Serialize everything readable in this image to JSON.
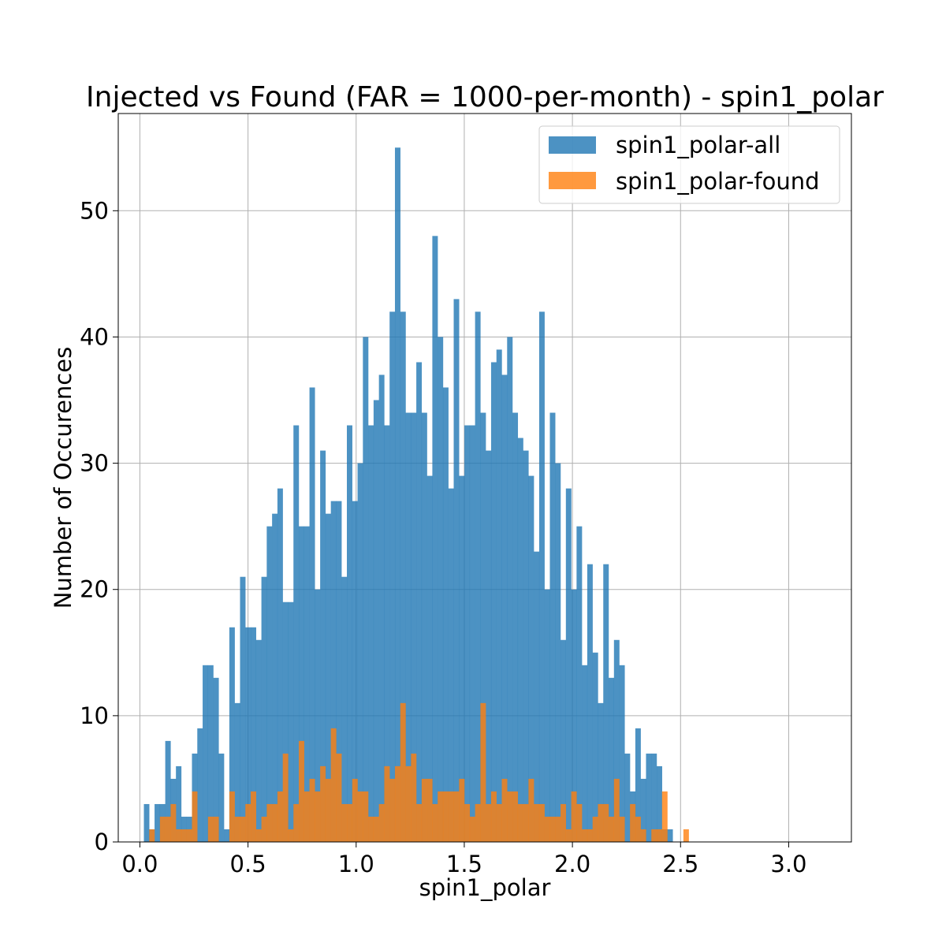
{
  "chart_data": {
    "type": "histogram",
    "title": "Injected vs Found (FAR = 1000-per-month) - spin1_polar",
    "xlabel": "spin1_polar",
    "ylabel": "Number of Occurences",
    "xlim": [
      -0.1,
      3.29
    ],
    "ylim": [
      0,
      57.7
    ],
    "xticks": [
      0.0,
      0.5,
      1.0,
      1.5,
      2.0,
      2.5,
      3.0
    ],
    "xtick_labels": [
      "0.0",
      "0.5",
      "1.0",
      "1.5",
      "2.0",
      "2.5",
      "3.0"
    ],
    "yticks": [
      0,
      10,
      20,
      30,
      40,
      50
    ],
    "ytick_labels": [
      "0",
      "10",
      "20",
      "30",
      "40",
      "50"
    ],
    "grid": true,
    "legend_position": "top-right",
    "series": [
      {
        "name": "spin1_polar-all",
        "color": "#1f77b4",
        "opacity": 0.8,
        "bin_start": 0.0185,
        "bin_width": 0.0247,
        "values": [
          3,
          1,
          3,
          3,
          8,
          5,
          6,
          2,
          2,
          7,
          9,
          14,
          14,
          13,
          7,
          1,
          17,
          11,
          21,
          17,
          17,
          16,
          21,
          25,
          26,
          28,
          19,
          19,
          33,
          25,
          25,
          36,
          20,
          31,
          26,
          27,
          27,
          21,
          33,
          27,
          30,
          40,
          33,
          35,
          37,
          33,
          42,
          55,
          42,
          34,
          34,
          38,
          34,
          29,
          48,
          40,
          36,
          28,
          43,
          29,
          33,
          33,
          42,
          34,
          31,
          38,
          39,
          37,
          40,
          34,
          32,
          31,
          29,
          23,
          42,
          20,
          34,
          30,
          16,
          28,
          20,
          25,
          14,
          22,
          15,
          11,
          22,
          13,
          16,
          14,
          7,
          4,
          9,
          5,
          7,
          7,
          6,
          1,
          1,
          0,
          0,
          0
        ]
      },
      {
        "name": "spin1_polar-found",
        "color": "#ff7f0e",
        "opacity": 0.8,
        "bin_start": 0.0185,
        "bin_width": 0.0247,
        "values": [
          0,
          1,
          0,
          2,
          2,
          3,
          1,
          1,
          1,
          4,
          0,
          0,
          2,
          2,
          0,
          0,
          4,
          2,
          2,
          3,
          4,
          1,
          2,
          3,
          3,
          4,
          7,
          1,
          3,
          8,
          4,
          5,
          4,
          6,
          5,
          9,
          7,
          3,
          3,
          5,
          4,
          4,
          2,
          2,
          3,
          6,
          5,
          6,
          11,
          6,
          7,
          3,
          5,
          5,
          3,
          4,
          4,
          4,
          4,
          5,
          3,
          2,
          3,
          11,
          3,
          4,
          3,
          5,
          4,
          4,
          3,
          3,
          5,
          3,
          3,
          2,
          2,
          2,
          3,
          1,
          4,
          3,
          1,
          1,
          2,
          3,
          3,
          2,
          5,
          2,
          0,
          3,
          2,
          1,
          0,
          1,
          1,
          4,
          0,
          0,
          0,
          1
        ]
      }
    ]
  }
}
